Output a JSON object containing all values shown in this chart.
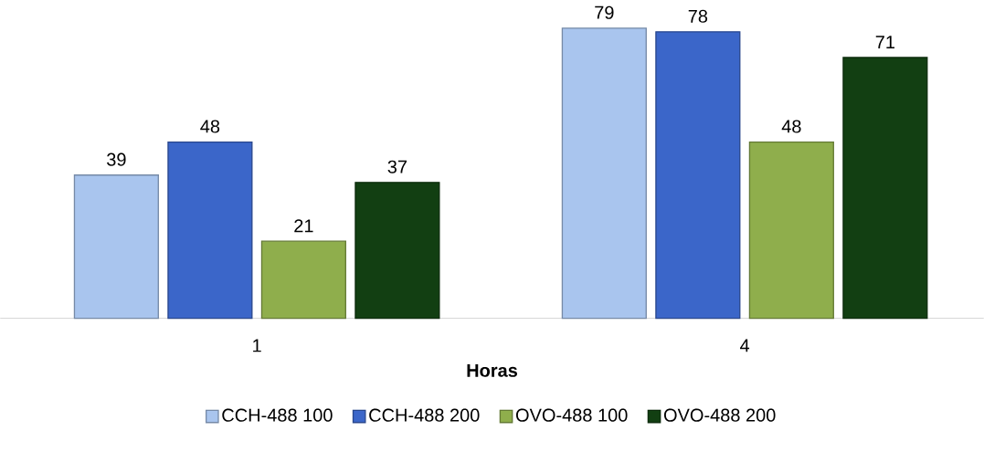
{
  "chart_data": {
    "type": "bar",
    "xlabel": "Horas",
    "categories": [
      "1",
      "4"
    ],
    "data_labels": true,
    "legend": "bottom",
    "series": [
      {
        "name": "CCH-488 100",
        "color": "#a9c5ee",
        "values": [
          39,
          79
        ]
      },
      {
        "name": "CCH-488 200",
        "color": "#3b66c9",
        "values": [
          48,
          78
        ]
      },
      {
        "name": "OVO-488 100",
        "color": "#8fae4c",
        "values": [
          21,
          48
        ]
      },
      {
        "name": "OVO-488 200",
        "color": "#123f12",
        "values": [
          37,
          71
        ]
      }
    ]
  }
}
